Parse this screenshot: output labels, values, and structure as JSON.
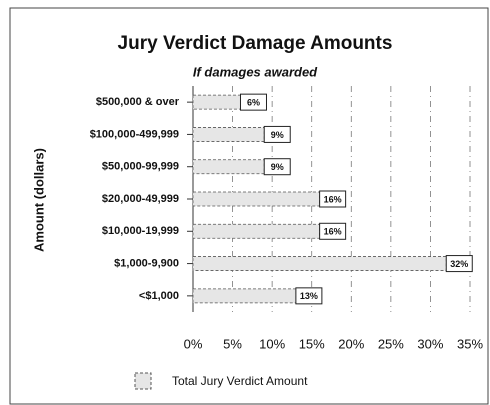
{
  "chart_data": {
    "type": "bar",
    "orientation": "horizontal",
    "title": "Jury Verdict Damage Amounts",
    "subtitle": "If damages awarded",
    "y_label": "Amount (dollars)",
    "categories": [
      "$500,000 & over",
      "$100,000-499,999",
      "$50,000-99,999",
      "$20,000-49,999",
      "$10,000-19,999",
      "$1,000-9,900",
      "<$1,000"
    ],
    "series": [
      {
        "name": "Total Jury Verdict Amount",
        "color": "#e6e6e6",
        "values": [
          6,
          9,
          9,
          16,
          16,
          32,
          13
        ],
        "value_labels": [
          "6%",
          "9%",
          "9%",
          "16%",
          "16%",
          "32%",
          "13%"
        ]
      }
    ],
    "xlim": [
      0,
      35
    ],
    "xticks": [
      {
        "value": 0,
        "label": "0%"
      },
      {
        "value": 5,
        "label": "5%"
      },
      {
        "value": 10,
        "label": "10%"
      },
      {
        "value": 15,
        "label": "15%"
      },
      {
        "value": 20,
        "label": "20%"
      },
      {
        "value": 25,
        "label": "25%"
      },
      {
        "value": 30,
        "label": "30%"
      },
      {
        "value": 35,
        "label": "35%"
      }
    ],
    "grid": true
  }
}
